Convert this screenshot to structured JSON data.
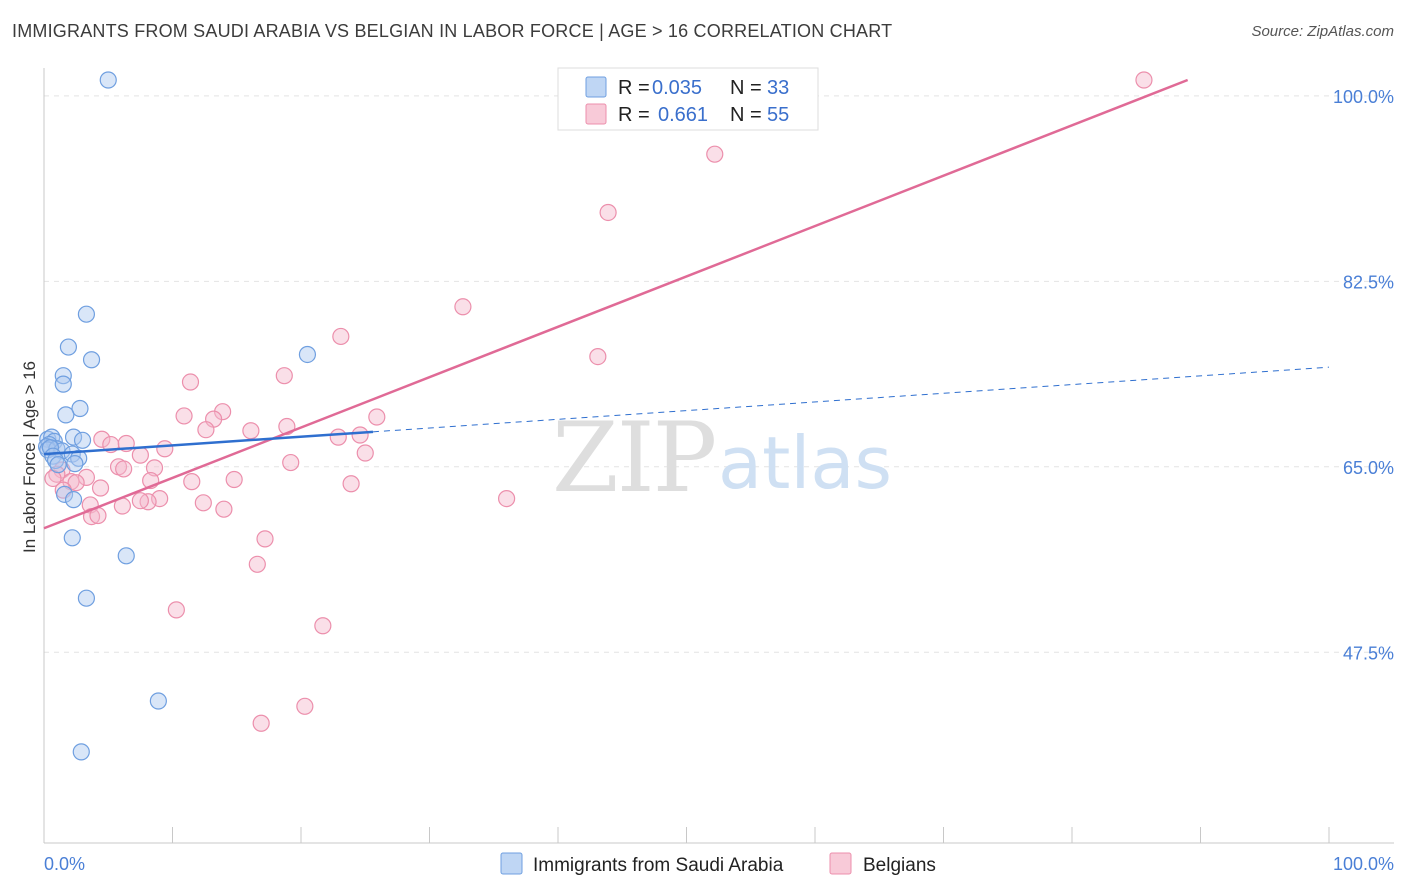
{
  "title": "IMMIGRANTS FROM SAUDI ARABIA VS BELGIAN IN LABOR FORCE | AGE > 16 CORRELATION CHART",
  "source": "Source: ZipAtlas.com",
  "watermark": {
    "zip": "ZIP",
    "atlas": "atlas"
  },
  "colors": {
    "blue_fill": "#aac8f0",
    "blue_stroke": "#6f9fe0",
    "blue_line": "#2f6fcf",
    "pink_fill": "#f5b8cb",
    "pink_stroke": "#ec8fac",
    "pink_line": "#e06a96",
    "grid": "#e4e4e4",
    "axis_text": "#4a7fd6"
  },
  "legend": {
    "r_label": "R =",
    "n_label": "N =",
    "series": [
      {
        "r": "0.035",
        "n": "33"
      },
      {
        "r": "0.661",
        "n": "55"
      }
    ]
  },
  "chart_data": {
    "type": "scatter",
    "title": "IMMIGRANTS FROM SAUDI ARABIA VS BELGIAN IN LABOR FORCE | AGE > 16 CORRELATION CHART",
    "xlabel": "",
    "ylabel": "In Labor Force | Age > 16",
    "xlim": [
      0,
      100
    ],
    "ylim": [
      29.5,
      101.5
    ],
    "x_tick_labels": [
      "0.0%",
      "100.0%"
    ],
    "y_ticks": [
      47.5,
      65.0,
      82.5,
      100.0
    ],
    "y_tick_labels": [
      "47.5%",
      "65.0%",
      "82.5%",
      "100.0%"
    ],
    "grid": true,
    "legend_position": "top-center",
    "series": [
      {
        "name": "Immigrants from Saudi Arabia",
        "color": "#aac8f0",
        "points": [
          [
            5,
            101.5
          ],
          [
            3.3,
            79.4
          ],
          [
            1.9,
            76.3
          ],
          [
            3.7,
            75.1
          ],
          [
            20.5,
            75.6
          ],
          [
            1.5,
            73.6
          ],
          [
            1.5,
            72.8
          ],
          [
            2.8,
            70.5
          ],
          [
            1.7,
            69.9
          ],
          [
            0.3,
            67.6
          ],
          [
            0.6,
            67.8
          ],
          [
            0.8,
            67.4
          ],
          [
            0.4,
            67.1
          ],
          [
            0.2,
            66.9
          ],
          [
            0.3,
            66.6
          ],
          [
            1.0,
            66.7
          ],
          [
            1.4,
            66.5
          ],
          [
            0.5,
            66.8
          ],
          [
            0.7,
            66.0
          ],
          [
            2.3,
            67.8
          ],
          [
            3.0,
            67.5
          ],
          [
            2.2,
            66.2
          ],
          [
            2.7,
            65.8
          ],
          [
            0.9,
            65.6
          ],
          [
            1.1,
            65.2
          ],
          [
            1.6,
            62.4
          ],
          [
            2.3,
            61.9
          ],
          [
            2.2,
            58.3
          ],
          [
            6.4,
            56.6
          ],
          [
            3.3,
            52.6
          ],
          [
            8.9,
            42.9
          ],
          [
            2.9,
            38.1
          ],
          [
            2.4,
            65.3
          ]
        ]
      },
      {
        "name": "Belgians",
        "color": "#f5b8cb",
        "points": [
          [
            85.6,
            101.5
          ],
          [
            52.2,
            94.5
          ],
          [
            43.9,
            89.0
          ],
          [
            32.6,
            80.1
          ],
          [
            23.1,
            77.3
          ],
          [
            43.1,
            75.4
          ],
          [
            18.7,
            73.6
          ],
          [
            11.4,
            73.0
          ],
          [
            13.9,
            70.2
          ],
          [
            10.9,
            69.8
          ],
          [
            13.2,
            69.5
          ],
          [
            25.9,
            69.7
          ],
          [
            18.9,
            68.8
          ],
          [
            12.6,
            68.5
          ],
          [
            16.1,
            68.4
          ],
          [
            24.6,
            68.0
          ],
          [
            22.9,
            67.8
          ],
          [
            4.5,
            67.6
          ],
          [
            5.2,
            67.1
          ],
          [
            6.4,
            67.2
          ],
          [
            9.4,
            66.7
          ],
          [
            7.5,
            66.1
          ],
          [
            25.0,
            66.3
          ],
          [
            19.2,
            65.4
          ],
          [
            8.6,
            64.9
          ],
          [
            5.8,
            65.0
          ],
          [
            6.2,
            64.8
          ],
          [
            1.4,
            64.7
          ],
          [
            1.0,
            64.3
          ],
          [
            3.3,
            64.0
          ],
          [
            14.8,
            63.8
          ],
          [
            11.5,
            63.6
          ],
          [
            23.9,
            63.4
          ],
          [
            0.7,
            63.9
          ],
          [
            2.1,
            63.6
          ],
          [
            8.3,
            63.7
          ],
          [
            2.5,
            63.5
          ],
          [
            4.4,
            63.0
          ],
          [
            1.5,
            62.8
          ],
          [
            9.0,
            62.0
          ],
          [
            8.1,
            61.7
          ],
          [
            7.5,
            61.8
          ],
          [
            12.4,
            61.6
          ],
          [
            3.6,
            61.4
          ],
          [
            14.0,
            61.0
          ],
          [
            6.1,
            61.3
          ],
          [
            3.7,
            60.3
          ],
          [
            4.2,
            60.4
          ],
          [
            36.0,
            62.0
          ],
          [
            16.6,
            55.8
          ],
          [
            10.3,
            51.5
          ],
          [
            17.2,
            58.2
          ],
          [
            16.9,
            40.8
          ],
          [
            21.7,
            50.0
          ],
          [
            20.3,
            42.4
          ]
        ]
      }
    ],
    "trend_lines": [
      {
        "series": "Immigrants from Saudi Arabia",
        "solid": [
          [
            0,
            66.2
          ],
          [
            25.6,
            68.3
          ]
        ],
        "dashed": [
          [
            25.6,
            68.3
          ],
          [
            100,
            74.4
          ]
        ]
      },
      {
        "series": "Belgians",
        "solid": [
          [
            0,
            59.2
          ],
          [
            89.0,
            101.5
          ]
        ]
      }
    ]
  }
}
